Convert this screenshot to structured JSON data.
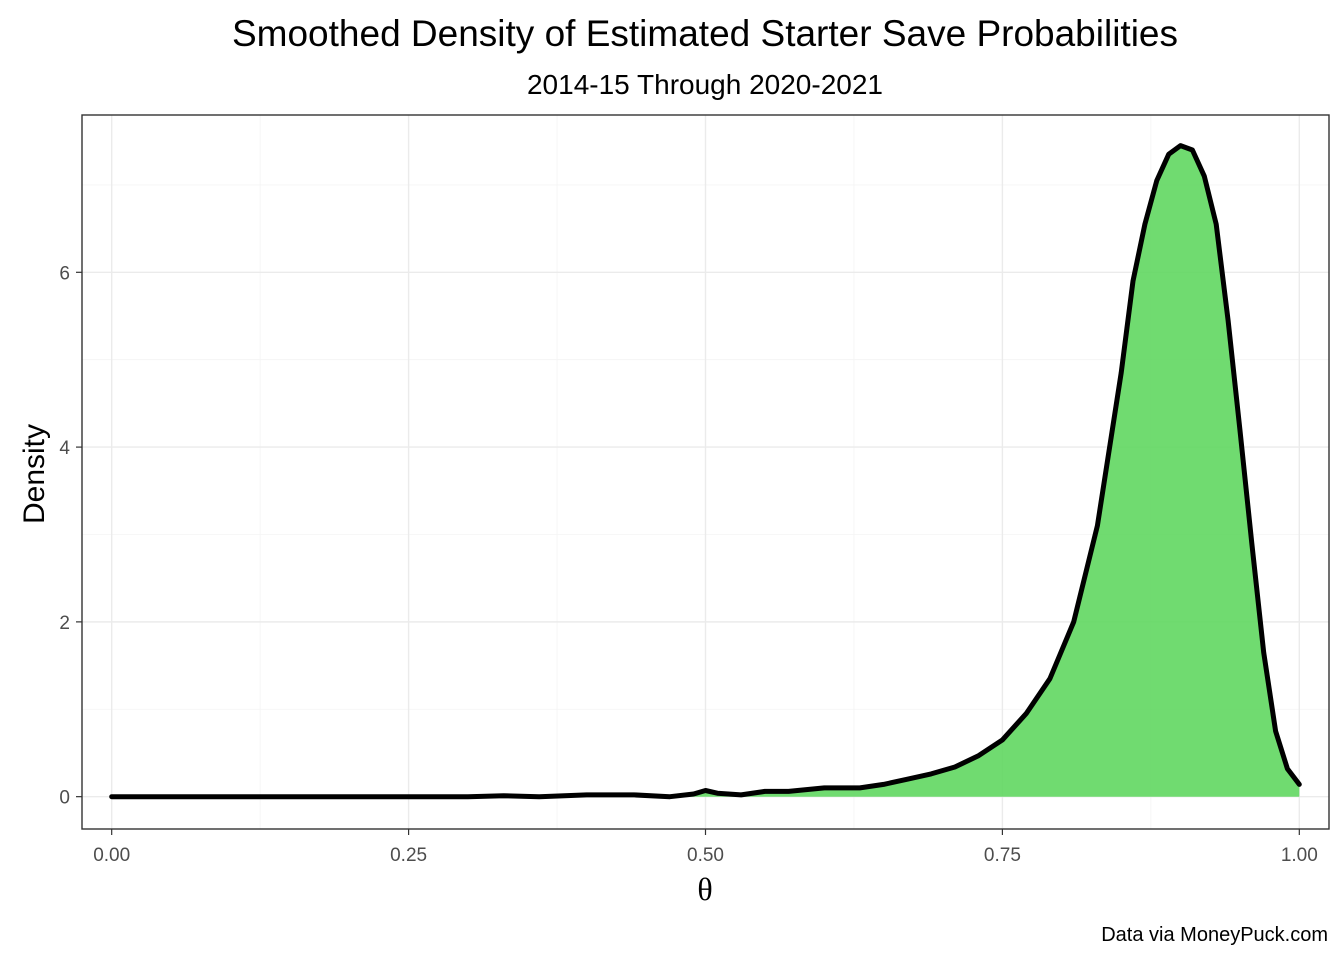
{
  "chart_data": {
    "type": "area",
    "title": "Smoothed Density of Estimated Starter Save Probabilities",
    "subtitle": "2014-15 Through 2020-2021",
    "xlabel": "θ",
    "ylabel": "Density",
    "caption": "Data via MoneyPuck.com",
    "xlim": [
      -0.025,
      1.025
    ],
    "ylim": [
      -0.37,
      7.8
    ],
    "x_ticks": [
      0.0,
      0.25,
      0.5,
      0.75,
      1.0
    ],
    "x_tick_labels": [
      "0.00",
      "0.25",
      "0.50",
      "0.75",
      "1.00"
    ],
    "y_ticks": [
      0,
      2,
      4,
      6
    ],
    "y_tick_labels": [
      "0",
      "2",
      "4",
      "6"
    ],
    "grid": true,
    "fill_color": "#5cd65c",
    "line_color": "#000000",
    "series": [
      {
        "x": [
          0.0,
          0.05,
          0.1,
          0.15,
          0.2,
          0.25,
          0.3,
          0.33,
          0.36,
          0.4,
          0.44,
          0.47,
          0.49,
          0.5,
          0.51,
          0.53,
          0.55,
          0.57,
          0.6,
          0.63,
          0.65,
          0.67,
          0.69,
          0.71,
          0.73,
          0.75,
          0.77,
          0.79,
          0.81,
          0.83,
          0.85,
          0.86,
          0.87,
          0.88,
          0.89,
          0.9,
          0.91,
          0.92,
          0.93,
          0.94,
          0.95,
          0.96,
          0.97,
          0.98,
          0.99,
          1.0
        ],
        "y": [
          0.0,
          0.0,
          0.0,
          0.0,
          0.0,
          0.0,
          0.0,
          0.01,
          0.0,
          0.02,
          0.02,
          0.0,
          0.03,
          0.07,
          0.04,
          0.02,
          0.06,
          0.06,
          0.1,
          0.1,
          0.14,
          0.2,
          0.26,
          0.34,
          0.47,
          0.65,
          0.95,
          1.35,
          2.0,
          3.1,
          4.85,
          5.9,
          6.55,
          7.05,
          7.35,
          7.45,
          7.4,
          7.1,
          6.55,
          5.45,
          4.2,
          2.9,
          1.65,
          0.75,
          0.32,
          0.14
        ]
      }
    ]
  }
}
